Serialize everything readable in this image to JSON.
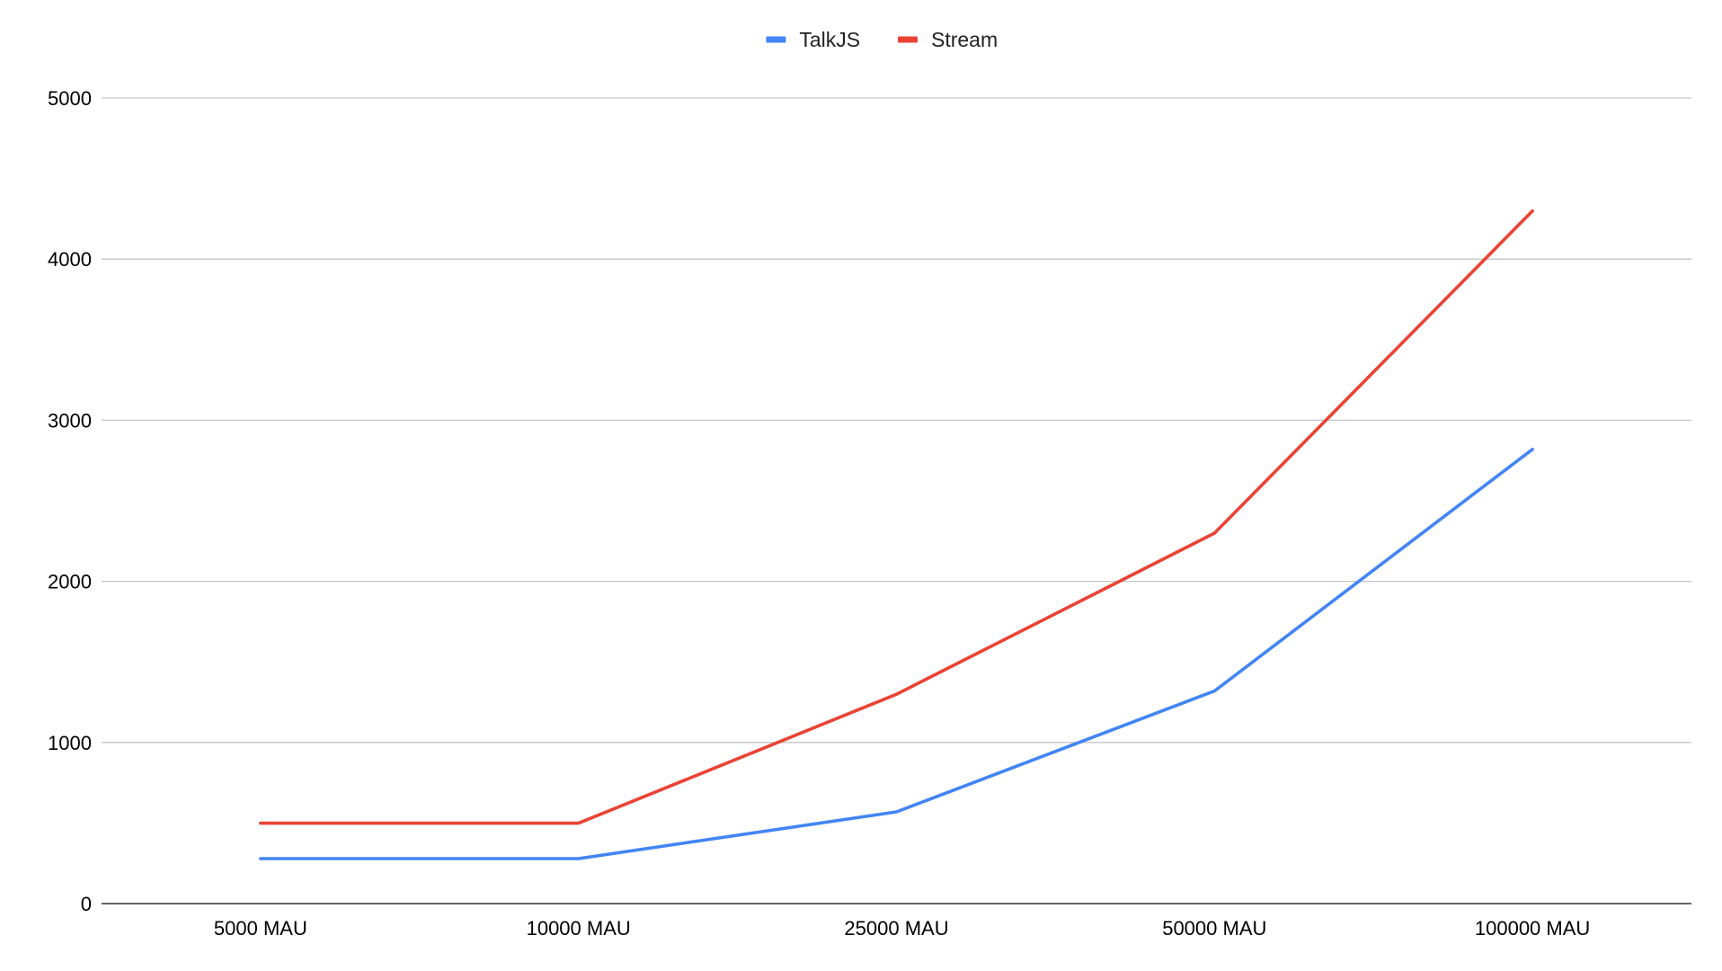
{
  "chart_data": {
    "type": "line",
    "title": "",
    "xlabel": "",
    "ylabel": "",
    "categories": [
      "5000 MAU",
      "10000 MAU",
      "25000 MAU",
      "50000 MAU",
      "100000 MAU"
    ],
    "series": [
      {
        "name": "TalkJS",
        "color": "#4285f4",
        "values": [
          279,
          279,
          569,
          1319,
          2819
        ]
      },
      {
        "name": "Stream",
        "color": "#ea4335",
        "values": [
          499,
          499,
          1299,
          2299,
          4299
        ]
      }
    ],
    "ylim": [
      0,
      5000
    ],
    "yticks": [
      0,
      1000,
      2000,
      3000,
      4000,
      5000
    ],
    "grid": true,
    "legend_position": "top-center"
  }
}
